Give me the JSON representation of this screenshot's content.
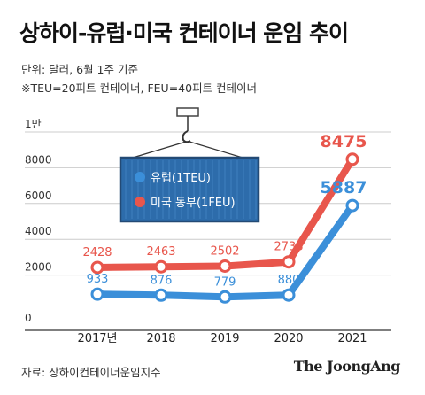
{
  "title": "상하이-유럽·미국 컨테이너 운임 추이",
  "subtitle_1": "단위: 달러, 6월 1주 기준",
  "subtitle_2": "※TEU=20피트 컨테이너, FEU=40피트 컨테이너",
  "source": "자료: 상하이컨테이너운임지수",
  "brand": "The JoongAng",
  "colors": {
    "europe": "#3b8fd9",
    "us_east": "#e8564c",
    "grid": "#cccccc",
    "container_fill": "#2d6cab",
    "container_edge": "#234a75"
  },
  "chart_data": {
    "type": "line",
    "categories": [
      "2017년",
      "2018",
      "2019",
      "2020",
      "2021"
    ],
    "yticks": [
      "0",
      "2000",
      "4000",
      "6000",
      "8000",
      "1만"
    ],
    "ylim": [
      0,
      10000
    ],
    "grid": true,
    "legend_position": "top-left (container graphic)",
    "series": [
      {
        "name": "유럽(1TEU)",
        "color_key": "europe",
        "values": [
          933,
          876,
          779,
          880,
          5887
        ]
      },
      {
        "name": "미국 동부(1FEU)",
        "color_key": "us_east",
        "values": [
          2428,
          2463,
          2502,
          2738,
          8475
        ]
      }
    ]
  }
}
